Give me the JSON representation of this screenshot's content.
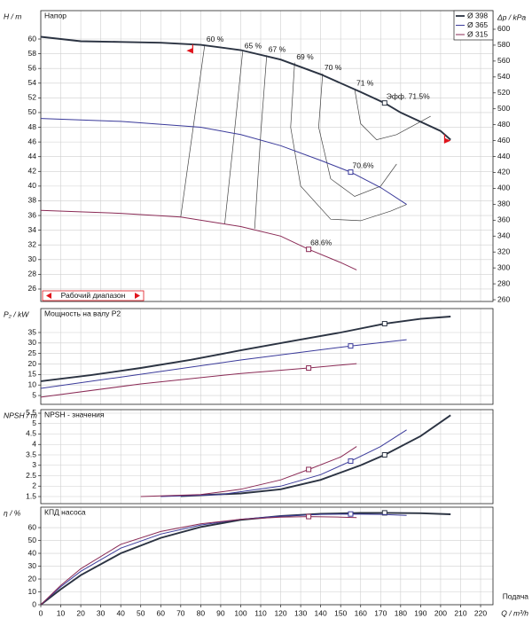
{
  "chart_data": [
    {
      "type": "line",
      "title": "Напор",
      "ylabel": "H / m",
      "y2label": "Δp / kPa",
      "ylim": [
        24.31,
        63.86
      ],
      "yticks": [
        26,
        28,
        30,
        32,
        34,
        36,
        38,
        40,
        42,
        44,
        46,
        48,
        50,
        52,
        54,
        56,
        58,
        60
      ],
      "y2lim": [
        257.8,
        623.4
      ],
      "y2ticks": [
        260,
        280,
        300,
        320,
        340,
        360,
        380,
        400,
        420,
        440,
        460,
        480,
        500,
        520,
        540,
        560,
        580,
        600
      ],
      "grid": true,
      "legend": "top-right",
      "series": [
        {
          "name": "Ø 398",
          "color": "#2b3342",
          "x": [
            0,
            20,
            40,
            60,
            80,
            100,
            120,
            140,
            160,
            172,
            180,
            200,
            205
          ],
          "values": [
            60.3,
            59.7,
            59.6,
            59.5,
            59.2,
            58.5,
            57.2,
            55.2,
            52.8,
            51.3,
            50.0,
            47.5,
            46.3
          ],
          "bep": {
            "x": 172,
            "y": 51.3,
            "label": "Эфф. 71.5%"
          }
        },
        {
          "name": "Ø 365",
          "color": "#3a3a9a",
          "x": [
            0,
            40,
            80,
            100,
            120,
            140,
            155,
            170,
            183
          ],
          "values": [
            49.2,
            48.8,
            48.0,
            47.0,
            45.5,
            43.5,
            41.9,
            39.8,
            37.5
          ],
          "bep": {
            "x": 155,
            "y": 41.9,
            "label": "70.6%"
          }
        },
        {
          "name": "Ø 315",
          "color": "#8a2a55",
          "x": [
            0,
            40,
            70,
            100,
            120,
            134,
            150,
            158
          ],
          "values": [
            36.7,
            36.3,
            35.8,
            34.5,
            33.2,
            31.4,
            29.6,
            28.6
          ],
          "bep": {
            "x": 134,
            "y": 31.4,
            "label": "68.6%"
          }
        }
      ],
      "efficiency_contours": [
        {
          "label": "60 %",
          "x": [
            70,
            82
          ],
          "y": [
            35.8,
            59.2
          ]
        },
        {
          "label": "65 %",
          "x": [
            92,
            96,
            101
          ],
          "y": [
            34.8,
            45,
            58.3
          ]
        },
        {
          "label": "67 %",
          "x": [
            107,
            110,
            113
          ],
          "y": [
            34.2,
            47,
            57.8
          ]
        },
        {
          "label": "69 %",
          "x": [
            183,
            175,
            160,
            145,
            130,
            125,
            127
          ],
          "y": [
            37.5,
            36.6,
            35.3,
            35.5,
            40,
            48,
            56.8
          ]
        },
        {
          "label": "70 %",
          "x": [
            178,
            170,
            157,
            145,
            139,
            141
          ],
          "y": [
            43,
            40,
            38.6,
            41,
            48,
            55.3
          ]
        },
        {
          "label": "71 %",
          "x": [
            195,
            178,
            168,
            160,
            157
          ],
          "y": [
            49.5,
            47,
            46.3,
            48.5,
            53.2
          ]
        }
      ],
      "operating_range": {
        "label": "Рабочий диапазон",
        "x": [
          76,
          202
        ]
      }
    },
    {
      "type": "line",
      "title": "Мощность на валу P2",
      "ylabel": "P₂ / kW",
      "ylim": [
        0.8,
        46.4
      ],
      "yticks": [
        5,
        10,
        15,
        20,
        25,
        30,
        35
      ],
      "grid": true,
      "series": [
        {
          "color": "#2b3342",
          "x": [
            0,
            25,
            50,
            75,
            100,
            125,
            150,
            172,
            190,
            205
          ],
          "values": [
            11.8,
            14.7,
            18.1,
            22.0,
            26.5,
            30.8,
            35.0,
            39.2,
            41.5,
            42.6
          ]
        },
        {
          "color": "#3a3a9a",
          "x": [
            0,
            50,
            100,
            155,
            183
          ],
          "values": [
            8.4,
            15.1,
            21.9,
            28.6,
            31.6
          ]
        },
        {
          "color": "#8a2a55",
          "x": [
            0,
            50,
            100,
            134,
            158
          ],
          "values": [
            4.2,
            10.5,
            15.5,
            18.1,
            20.2
          ]
        }
      ]
    },
    {
      "type": "line",
      "title": "NPSH - значения",
      "ylabel": "NPSH / m",
      "ylim": [
        1.16,
        5.67
      ],
      "yticks": [
        1.5,
        2,
        2.5,
        3,
        3.5,
        4,
        4.5,
        5,
        5.5
      ],
      "grid": true,
      "series": [
        {
          "color": "#2b3342",
          "x": [
            70,
            100,
            120,
            140,
            160,
            172,
            190,
            205
          ],
          "values": [
            1.52,
            1.65,
            1.85,
            2.3,
            3.0,
            3.5,
            4.4,
            5.4
          ]
        },
        {
          "color": "#3a3a9a",
          "x": [
            60,
            90,
            120,
            140,
            155,
            170,
            183
          ],
          "values": [
            1.5,
            1.6,
            2.0,
            2.55,
            3.2,
            3.9,
            4.7
          ]
        },
        {
          "color": "#8a2a55",
          "x": [
            50,
            80,
            100,
            120,
            134,
            150,
            158
          ],
          "values": [
            1.5,
            1.6,
            1.85,
            2.3,
            2.8,
            3.4,
            3.9
          ]
        }
      ]
    },
    {
      "type": "line",
      "title": "КПД насоса",
      "ylabel": "η / %",
      "xlabel": "Q / m³/h",
      "xtitle": "Подача",
      "ylim": [
        0,
        75.9
      ],
      "yticks": [
        0,
        10,
        20,
        30,
        40,
        50,
        60
      ],
      "grid": true,
      "xlim": [
        0,
        226.2
      ],
      "xticks": [
        0,
        10,
        20,
        30,
        40,
        50,
        60,
        70,
        80,
        90,
        100,
        110,
        120,
        130,
        140,
        150,
        160,
        170,
        180,
        190,
        200,
        210,
        220
      ],
      "series": [
        {
          "color": "#2b3342",
          "x": [
            0,
            10,
            20,
            40,
            60,
            80,
            100,
            120,
            140,
            160,
            172,
            190,
            205
          ],
          "values": [
            0,
            12,
            23,
            40,
            52,
            60.5,
            66,
            69,
            70.7,
            71.4,
            71.5,
            71.2,
            70.4
          ]
        },
        {
          "color": "#3a3a9a",
          "x": [
            0,
            10,
            20,
            40,
            60,
            80,
            100,
            120,
            140,
            155,
            170,
            183
          ],
          "values": [
            0,
            14,
            26,
            44,
            55,
            62,
            66.5,
            69,
            70.3,
            70.6,
            70.3,
            69.5
          ]
        },
        {
          "color": "#8a2a55",
          "x": [
            0,
            10,
            20,
            40,
            60,
            80,
            100,
            120,
            134,
            150,
            158
          ],
          "values": [
            0,
            15,
            28,
            47,
            57,
            63,
            66.5,
            68.2,
            68.6,
            68.2,
            67.8
          ]
        }
      ]
    }
  ]
}
